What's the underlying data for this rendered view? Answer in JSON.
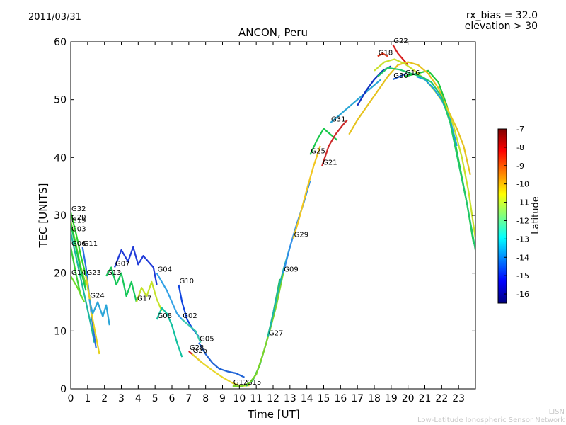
{
  "header": {
    "date": "2011/03/31",
    "rx_bias": "rx_bias = 32.0",
    "elevation": "elevation > 30"
  },
  "footer": {
    "line1": "LISN",
    "line2": "Low-Latitude Ionospheric Sensor Network"
  },
  "chart_data": {
    "type": "line",
    "title": "ANCON, Peru",
    "xlabel": "Time [UT]",
    "ylabel": "TEC [UNITS]",
    "xlim": [
      0,
      24
    ],
    "ylim": [
      0,
      60
    ],
    "xticks": [
      0,
      1,
      2,
      3,
      4,
      5,
      6,
      7,
      8,
      9,
      10,
      11,
      12,
      13,
      14,
      15,
      16,
      17,
      18,
      19,
      20,
      21,
      22,
      23
    ],
    "yticks": [
      0,
      10,
      20,
      30,
      40,
      50,
      60
    ],
    "grid": false,
    "colorbar": {
      "label": "Latitude",
      "range": [
        -16.5,
        -7
      ],
      "ticks": [
        -7,
        -8,
        -9,
        -10,
        -11,
        -12,
        -13,
        -14,
        -15,
        -16
      ],
      "colormap": [
        "#00007f",
        "#0000ff",
        "#007fff",
        "#00ffff",
        "#7fff7f",
        "#ffff00",
        "#ff7f00",
        "#ff0000",
        "#7f0000"
      ]
    },
    "series": [
      {
        "name": "G32",
        "color": "#2bd62b",
        "points": [
          [
            0,
            30.5
          ],
          [
            0.3,
            27
          ],
          [
            0.6,
            23
          ],
          [
            0.9,
            19.5
          ],
          [
            1.1,
            16
          ]
        ]
      },
      {
        "name": "G20",
        "color": "#7bd42a",
        "points": [
          [
            0,
            29
          ],
          [
            0.3,
            25
          ],
          [
            0.6,
            21
          ],
          [
            0.9,
            18
          ]
        ]
      },
      {
        "name": "G19",
        "color": "#19c94a",
        "points": [
          [
            0,
            28.5
          ],
          [
            0.3,
            24.5
          ],
          [
            0.6,
            20.5
          ],
          [
            0.9,
            17
          ]
        ]
      },
      {
        "name": "G03",
        "color": "#1db8a0",
        "points": [
          [
            0,
            27
          ],
          [
            0.3,
            23
          ],
          [
            0.6,
            19
          ],
          [
            0.9,
            15
          ],
          [
            1.2,
            11
          ],
          [
            1.4,
            8
          ]
        ]
      },
      {
        "name": "G06",
        "color": "#3bd23b",
        "points": [
          [
            0,
            24.5
          ],
          [
            0.3,
            20
          ],
          [
            0.6,
            16
          ]
        ]
      },
      {
        "name": "G11",
        "color": "#2a6fe0",
        "points": [
          [
            0.7,
            24.5
          ],
          [
            0.9,
            21
          ],
          [
            1.1,
            16
          ],
          [
            1.3,
            11
          ],
          [
            1.5,
            7
          ]
        ]
      },
      {
        "name": "G14",
        "color": "#6fdc2a",
        "points": [
          [
            0,
            19.5
          ],
          [
            0.4,
            17.5
          ],
          [
            0.8,
            15
          ]
        ]
      },
      {
        "name": "G23",
        "color": "#e6d21e",
        "points": [
          [
            0.9,
            19.5
          ],
          [
            1.1,
            16
          ],
          [
            1.3,
            12
          ],
          [
            1.5,
            9
          ],
          [
            1.7,
            6
          ]
        ]
      },
      {
        "name": "G24",
        "color": "#2aa5d8",
        "points": [
          [
            1.1,
            15.5
          ],
          [
            1.3,
            13
          ],
          [
            1.6,
            15
          ],
          [
            1.9,
            12.5
          ],
          [
            2.1,
            14.5
          ],
          [
            2.3,
            11
          ]
        ]
      },
      {
        "name": "G13",
        "color": "#18c85a",
        "points": [
          [
            2.1,
            19.5
          ],
          [
            2.4,
            21
          ],
          [
            2.7,
            18
          ],
          [
            3,
            20
          ],
          [
            3.3,
            16
          ],
          [
            3.6,
            18.5
          ],
          [
            3.9,
            15
          ]
        ]
      },
      {
        "name": "G07",
        "color": "#1f3ad8",
        "points": [
          [
            2.6,
            21
          ],
          [
            3,
            24
          ],
          [
            3.4,
            22
          ],
          [
            3.7,
            24.5
          ],
          [
            4,
            21.5
          ],
          [
            4.3,
            23
          ],
          [
            4.6,
            22
          ],
          [
            4.9,
            21
          ],
          [
            5.1,
            18
          ]
        ]
      },
      {
        "name": "G17",
        "color": "#c4e32a",
        "points": [
          [
            3.9,
            15
          ],
          [
            4.2,
            17.5
          ],
          [
            4.5,
            16
          ],
          [
            4.8,
            18.5
          ],
          [
            5.1,
            15.5
          ],
          [
            5.4,
            13.5
          ]
        ]
      },
      {
        "name": "G04",
        "color": "#34a2e6",
        "points": [
          [
            5.1,
            20
          ],
          [
            5.4,
            18.5
          ],
          [
            5.7,
            17
          ],
          [
            6,
            15
          ],
          [
            6.3,
            13
          ],
          [
            6.6,
            12
          ]
        ]
      },
      {
        "name": "G08",
        "color": "#14c1a0",
        "points": [
          [
            5.1,
            12
          ],
          [
            5.4,
            14
          ],
          [
            5.7,
            13
          ],
          [
            6,
            11
          ],
          [
            6.3,
            8
          ],
          [
            6.6,
            5.5
          ]
        ]
      },
      {
        "name": "G10",
        "color": "#1146e0",
        "points": [
          [
            6.4,
            18
          ],
          [
            6.6,
            15
          ],
          [
            6.9,
            12
          ],
          [
            7.2,
            10.5
          ],
          [
            7.6,
            9
          ]
        ]
      },
      {
        "name": "G02",
        "color": "#38c8b0",
        "points": [
          [
            6.6,
            12
          ],
          [
            7,
            11
          ],
          [
            7.4,
            10
          ],
          [
            7.7,
            8
          ]
        ]
      },
      {
        "name": "G28",
        "color": "#d61e1e",
        "points": [
          [
            7,
            6.5
          ],
          [
            7.4,
            5.5
          ],
          [
            7.8,
            4.5
          ]
        ]
      },
      {
        "name": "G05",
        "color": "#1f63d6",
        "points": [
          [
            7.6,
            8
          ],
          [
            8,
            6
          ],
          [
            8.4,
            4.5
          ],
          [
            8.8,
            3.5
          ],
          [
            9.3,
            3
          ],
          [
            9.8,
            2.7
          ],
          [
            10.3,
            2
          ]
        ]
      },
      {
        "name": "G26",
        "color": "#e8d62a",
        "points": [
          [
            7.2,
            6
          ],
          [
            7.8,
            4.5
          ],
          [
            8.4,
            3.2
          ],
          [
            9,
            2
          ],
          [
            9.6,
            1
          ],
          [
            10.1,
            0.5
          ],
          [
            10.6,
            0.6
          ]
        ]
      },
      {
        "name": "G15",
        "color": "#2bbd60",
        "points": [
          [
            10.4,
            0.5
          ],
          [
            10.8,
            1.5
          ],
          [
            11.2,
            4
          ],
          [
            11.6,
            8
          ],
          [
            12,
            13
          ],
          [
            12.4,
            19
          ]
        ]
      },
      {
        "name": "G12",
        "color": "#7bd42a",
        "points": [
          [
            9.6,
            0.5
          ],
          [
            10.1,
            0.4
          ],
          [
            10.6,
            1
          ],
          [
            11,
            2.5
          ],
          [
            11.4,
            6
          ],
          [
            11.8,
            10
          ],
          [
            12.2,
            14.5
          ],
          [
            12.6,
            20
          ]
        ]
      },
      {
        "name": "G27",
        "color": "#1ab6a6",
        "points": [
          [
            11.7,
            9
          ],
          [
            12,
            13
          ],
          [
            12.3,
            17
          ],
          [
            12.6,
            20.5
          ],
          [
            13,
            24.5
          ]
        ]
      },
      {
        "name": "G09",
        "color": "#2f8ee8",
        "points": [
          [
            12.6,
            20
          ],
          [
            13,
            24.5
          ],
          [
            13.4,
            28.5
          ],
          [
            13.8,
            32
          ],
          [
            14.2,
            36
          ]
        ]
      },
      {
        "name": "G29",
        "color": "#f2c61e",
        "points": [
          [
            13.2,
            26
          ],
          [
            13.6,
            30
          ],
          [
            14,
            34.5
          ],
          [
            14.4,
            38.5
          ],
          [
            14.8,
            42
          ]
        ]
      },
      {
        "name": "G25",
        "color": "#18c84a",
        "points": [
          [
            14.2,
            40.5
          ],
          [
            14.6,
            43
          ],
          [
            15,
            45
          ],
          [
            15.4,
            44
          ],
          [
            15.8,
            43
          ]
        ]
      },
      {
        "name": "G21",
        "color": "#cc2a2a",
        "points": [
          [
            14.9,
            38.5
          ],
          [
            15.3,
            42
          ],
          [
            15.7,
            44
          ],
          [
            16.1,
            45.5
          ],
          [
            16.4,
            46.5
          ]
        ]
      },
      {
        "name": "G31",
        "color": "#2aa6d6",
        "points": [
          [
            15.4,
            46
          ],
          [
            15.8,
            47
          ],
          [
            16.2,
            48
          ],
          [
            16.6,
            49
          ],
          [
            17.2,
            50.5
          ],
          [
            17.8,
            52
          ],
          [
            18.4,
            53.5
          ]
        ]
      },
      {
        "name": "G18",
        "color": "#e23a1e",
        "points": [
          [
            18.2,
            57.5
          ],
          [
            18.5,
            58
          ],
          [
            18.8,
            57.5
          ]
        ]
      },
      {
        "name": "G22",
        "color": "#d81e1e",
        "points": [
          [
            19.1,
            59.5
          ],
          [
            19.4,
            58
          ],
          [
            19.7,
            57
          ],
          [
            20,
            56
          ]
        ]
      },
      {
        "name": "G30",
        "color": "#1f5fd6",
        "points": [
          [
            19.1,
            53.5
          ],
          [
            19.5,
            54
          ],
          [
            19.9,
            54.5
          ]
        ]
      },
      {
        "name": "G16",
        "color": "#1cc83c",
        "points": [
          [
            19.8,
            54
          ],
          [
            20.5,
            54.5
          ],
          [
            21.2,
            55
          ],
          [
            21.8,
            53
          ],
          [
            22.3,
            49
          ],
          [
            22.7,
            44
          ],
          [
            23.1,
            38
          ],
          [
            23.5,
            32
          ],
          [
            23.9,
            25
          ]
        ]
      },
      {
        "name": "",
        "color": "#0f2fc0",
        "points": [
          [
            17,
            49
          ],
          [
            17.5,
            51.5
          ],
          [
            18,
            53.5
          ],
          [
            18.5,
            55
          ],
          [
            19,
            55.8
          ]
        ]
      },
      {
        "name": "",
        "color": "#e6c21e",
        "points": [
          [
            16.5,
            44
          ],
          [
            17,
            46.5
          ],
          [
            17.6,
            49
          ],
          [
            18.2,
            51.5
          ],
          [
            18.8,
            54
          ],
          [
            19.4,
            56
          ],
          [
            20,
            56.5
          ],
          [
            20.6,
            56
          ],
          [
            21.2,
            54.5
          ],
          [
            21.8,
            52
          ],
          [
            22.4,
            48
          ],
          [
            22.9,
            45
          ],
          [
            23.3,
            42
          ],
          [
            23.7,
            37
          ]
        ]
      },
      {
        "name": "",
        "color": "#c8e02a",
        "points": [
          [
            18,
            55
          ],
          [
            18.6,
            56.5
          ],
          [
            19.2,
            57
          ],
          [
            19.8,
            56.2
          ],
          [
            20.4,
            55
          ],
          [
            21,
            53.5
          ],
          [
            21.6,
            51.5
          ],
          [
            22.2,
            49
          ],
          [
            22.7,
            45.5
          ],
          [
            23.2,
            40
          ],
          [
            23.6,
            34
          ],
          [
            24,
            26
          ]
        ]
      },
      {
        "name": "",
        "color": "#1ba0e0",
        "points": [
          [
            20.5,
            54
          ],
          [
            21,
            53.5
          ],
          [
            21.5,
            52
          ],
          [
            22,
            50
          ],
          [
            22.5,
            46.5
          ],
          [
            22.9,
            42
          ]
        ]
      },
      {
        "name": "",
        "color": "#22c86a",
        "points": [
          [
            18.2,
            54
          ],
          [
            18.8,
            55.5
          ],
          [
            19.5,
            55.2
          ],
          [
            20.2,
            54.5
          ],
          [
            20.8,
            54
          ],
          [
            21.4,
            53
          ],
          [
            22,
            50.5
          ],
          [
            22.5,
            46
          ],
          [
            23,
            39
          ],
          [
            23.5,
            32
          ],
          [
            24,
            24
          ]
        ]
      }
    ]
  }
}
